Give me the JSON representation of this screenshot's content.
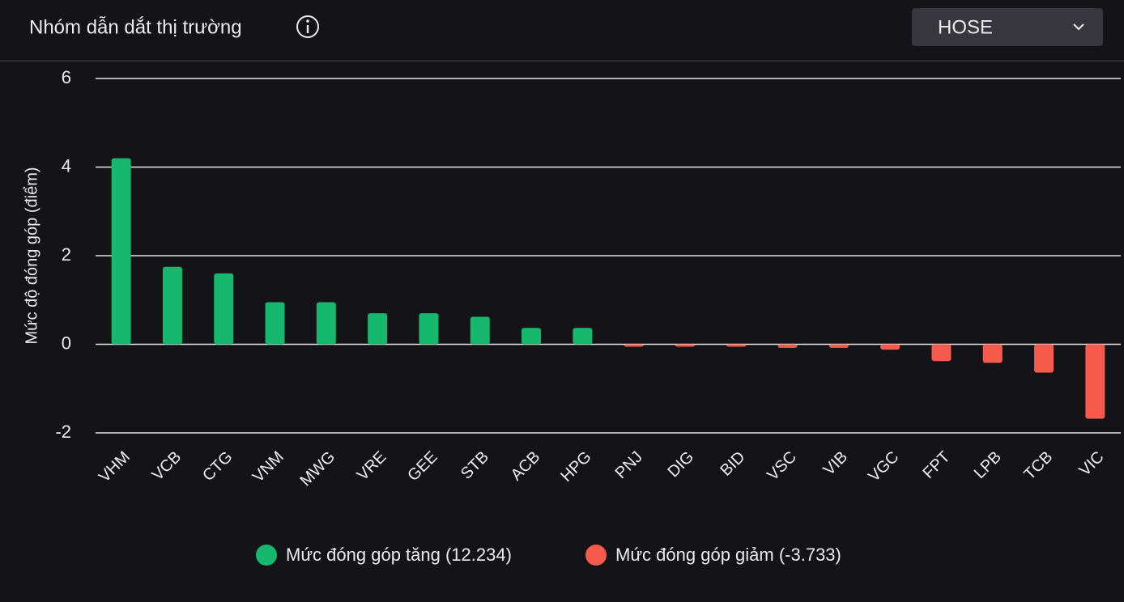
{
  "header": {
    "title": "Nhóm dẫn dắt thị trường",
    "dropdown": "HOSE"
  },
  "chart_data": {
    "type": "bar",
    "y_label": "Mức độ đóng góp (điểm)",
    "categories": [
      "VHM",
      "VCB",
      "CTG",
      "VNM",
      "MWG",
      "VRE",
      "GEE",
      "STB",
      "ACB",
      "HPG",
      "PNJ",
      "DIG",
      "BID",
      "VSC",
      "VIB",
      "VGC",
      "FPT",
      "LPB",
      "TCB",
      "VIC"
    ],
    "series": [
      {
        "name": "Mức đóng góp tăng (12.234)",
        "color": "#16b86e",
        "values": [
          4.2,
          1.75,
          1.6,
          0.95,
          0.95,
          0.7,
          0.7,
          0.62,
          0.37,
          0.37,
          null,
          null,
          null,
          null,
          null,
          null,
          null,
          null,
          null,
          null
        ]
      },
      {
        "name": "Mức đóng góp giảm (-3.733)",
        "color": "#f45b4c",
        "values": [
          null,
          null,
          null,
          null,
          null,
          null,
          null,
          null,
          null,
          null,
          -0.05,
          -0.05,
          -0.05,
          -0.08,
          -0.08,
          -0.12,
          -0.38,
          -0.42,
          -0.64,
          -1.68
        ]
      }
    ],
    "ylim": [
      -2,
      6
    ],
    "yticks": [
      -2,
      0,
      2,
      4,
      6
    ],
    "grid": true
  }
}
